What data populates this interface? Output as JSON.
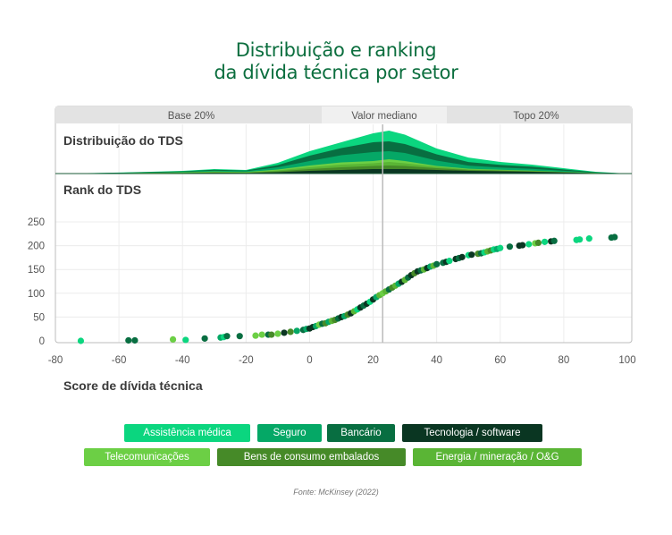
{
  "title_line1": "Distribuição e ranking",
  "title_line2": "da dívida técnica por setor",
  "source": "Fonte: McKinsey (2022)",
  "chart_data": [
    {
      "type": "area",
      "title": "Distribuição do TDS",
      "stacked": true,
      "bands": [
        "Base 20%",
        "Valor mediano",
        "Topo 20%"
      ],
      "median": 23,
      "x": [
        -80,
        -70,
        -60,
        -50,
        -40,
        -30,
        -20,
        -10,
        0,
        10,
        20,
        25,
        30,
        40,
        50,
        60,
        70,
        80,
        90,
        100
      ],
      "series": [
        {
          "name": "Tecnologia / software",
          "values": [
            0,
            0,
            0.2,
            0.3,
            0.5,
            0.8,
            0.6,
            1.5,
            3,
            4,
            5,
            5,
            5,
            4,
            3,
            2.5,
            2,
            1.2,
            0.4,
            0
          ]
        },
        {
          "name": "Bens de consumo embalados",
          "values": [
            0,
            0,
            0.1,
            0.2,
            0.3,
            0.5,
            0.4,
            1,
            2,
            3,
            3.5,
            4,
            3.5,
            2,
            1,
            0.8,
            0.5,
            0.3,
            0.1,
            0
          ]
        },
        {
          "name": "Energia / mineração / O&G",
          "values": [
            0,
            0,
            0.1,
            0.2,
            0.3,
            0.5,
            0.4,
            1,
            2,
            3,
            3,
            4,
            3,
            1.5,
            0.8,
            0.5,
            0.4,
            0.2,
            0.1,
            0
          ]
        },
        {
          "name": "Telecomunicações",
          "values": [
            0,
            0,
            0.1,
            0.2,
            0.3,
            0.4,
            0.4,
            1,
            2,
            2.5,
            2.5,
            3,
            2.5,
            1,
            0.6,
            0.5,
            0.3,
            0.2,
            0.1,
            0
          ]
        },
        {
          "name": "Seguro",
          "values": [
            0,
            0.2,
            0.2,
            0.4,
            0.6,
            1,
            0.8,
            2.5,
            5,
            8,
            10,
            9,
            9,
            6,
            3.5,
            2.5,
            2,
            1.2,
            0.3,
            0
          ]
        },
        {
          "name": "Bancário",
          "values": [
            0,
            0.2,
            0.2,
            0.4,
            0.5,
            1,
            0.8,
            2.5,
            6,
            8,
            11,
            11,
            10,
            7,
            4,
            3,
            2.5,
            1.5,
            0.5,
            0
          ]
        },
        {
          "name": "Assistência médica",
          "values": [
            0,
            0.1,
            0.2,
            0.3,
            0.5,
            0.8,
            0.6,
            2.5,
            5,
            6.5,
            10,
            12,
            10.5,
            6.5,
            5,
            3.2,
            2.3,
            1.4,
            0.5,
            0
          ]
        }
      ]
    },
    {
      "type": "scatter",
      "title": "Rank do TDS",
      "xlabel": "Score de dívida técnica",
      "xlim": [
        -80,
        100
      ],
      "ylim": [
        0,
        250
      ],
      "xticks": [
        "-80",
        "-60",
        "-40",
        "-20",
        "0",
        "20",
        "40",
        "60",
        "80",
        "100"
      ],
      "yticks": [
        "0",
        "50",
        "100",
        "150",
        "200",
        "250"
      ],
      "grid": true,
      "median": 23,
      "legend_position": "bottom",
      "legend": [
        "Assistência médica",
        "Seguro",
        "Bancário",
        "Tecnologia / software",
        "Telecomunicações",
        "Bens de consumo embalados",
        "Energia / mineração / O&G"
      ],
      "colors": [
        "#0bd67f",
        "#05a866",
        "#086e41",
        "#0a3622",
        "#6ccf45",
        "#468a28",
        "#5ab535"
      ],
      "points": [
        [
          -72,
          0,
          0
        ],
        [
          -57,
          1,
          2
        ],
        [
          -55,
          1,
          2
        ],
        [
          -43,
          3,
          4
        ],
        [
          -39,
          2,
          0
        ],
        [
          -33,
          5,
          2
        ],
        [
          -28,
          7,
          1
        ],
        [
          -27,
          8,
          0
        ],
        [
          -26,
          10,
          2
        ],
        [
          -22,
          10,
          2
        ],
        [
          -17,
          11,
          4
        ],
        [
          -15,
          13,
          4
        ],
        [
          -13,
          13,
          2
        ],
        [
          -12,
          13,
          5
        ],
        [
          -10,
          15,
          4
        ],
        [
          -8,
          17,
          3
        ],
        [
          -6,
          19,
          5
        ],
        [
          -4,
          21,
          1
        ],
        [
          -2,
          23,
          2
        ],
        [
          -1,
          25,
          1
        ],
        [
          0,
          26,
          3
        ],
        [
          1,
          29,
          3
        ],
        [
          2,
          31,
          1
        ],
        [
          3,
          34,
          4
        ],
        [
          4,
          36,
          2
        ],
        [
          5,
          37,
          5
        ],
        [
          6,
          40,
          1
        ],
        [
          7,
          42,
          6
        ],
        [
          8,
          44,
          5
        ],
        [
          9,
          47,
          2
        ],
        [
          10,
          50,
          3
        ],
        [
          11,
          52,
          1
        ],
        [
          12,
          55,
          5
        ],
        [
          13,
          58,
          3
        ],
        [
          14,
          62,
          6
        ],
        [
          15,
          66,
          0
        ],
        [
          16,
          70,
          3
        ],
        [
          17,
          74,
          2
        ],
        [
          18,
          78,
          3
        ],
        [
          19,
          82,
          0
        ],
        [
          20,
          87,
          3
        ],
        [
          21,
          92,
          1
        ],
        [
          22,
          96,
          6
        ],
        [
          23,
          100,
          4
        ],
        [
          24,
          104,
          6
        ],
        [
          25,
          108,
          2
        ],
        [
          26,
          112,
          5
        ],
        [
          27,
          116,
          6
        ],
        [
          28,
          120,
          1
        ],
        [
          29,
          124,
          3
        ],
        [
          30,
          128,
          6
        ],
        [
          31,
          133,
          2
        ],
        [
          32,
          138,
          3
        ],
        [
          33,
          142,
          5
        ],
        [
          34,
          146,
          3
        ],
        [
          35,
          148,
          2
        ],
        [
          36,
          150,
          6
        ],
        [
          37,
          153,
          3
        ],
        [
          38,
          156,
          1
        ],
        [
          39,
          158,
          6
        ],
        [
          40,
          161,
          2
        ],
        [
          42,
          164,
          2
        ],
        [
          43,
          166,
          3
        ],
        [
          44,
          168,
          0
        ],
        [
          46,
          172,
          3
        ],
        [
          47,
          174,
          2
        ],
        [
          48,
          176,
          3
        ],
        [
          50,
          180,
          0
        ],
        [
          51,
          181,
          3
        ],
        [
          53,
          183,
          5
        ],
        [
          54,
          184,
          2
        ],
        [
          55,
          186,
          0
        ],
        [
          56,
          188,
          6
        ],
        [
          57,
          190,
          5
        ],
        [
          58,
          192,
          0
        ],
        [
          59,
          193,
          1
        ],
        [
          60,
          195,
          0
        ],
        [
          63,
          198,
          2
        ],
        [
          66,
          200,
          3
        ],
        [
          67,
          201,
          3
        ],
        [
          69,
          203,
          0
        ],
        [
          71,
          205,
          4
        ],
        [
          72,
          206,
          5
        ],
        [
          74,
          208,
          0
        ],
        [
          76,
          209,
          3
        ],
        [
          77,
          210,
          2
        ],
        [
          84,
          212,
          0
        ],
        [
          85,
          213,
          0
        ],
        [
          88,
          215,
          0
        ],
        [
          95,
          217,
          2
        ],
        [
          96,
          218,
          2
        ]
      ]
    }
  ]
}
